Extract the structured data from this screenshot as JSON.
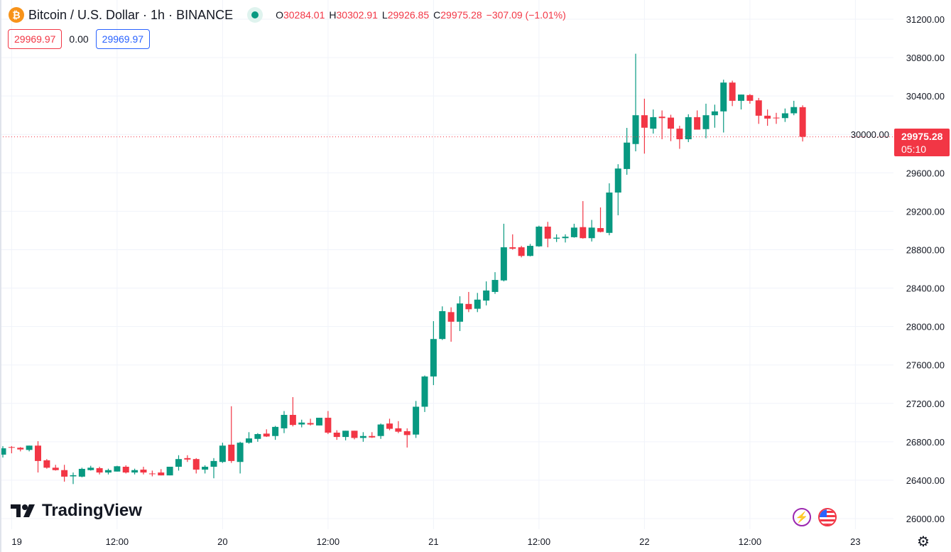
{
  "legend": {
    "symbol_title": "Bitcoin / U.S. Dollar · 1h · BINANCE",
    "coin_icon": "bitcoin-icon",
    "o_label": "O",
    "o_value": "30284.01",
    "h_label": "H",
    "h_value": "30302.91",
    "l_label": "L",
    "l_value": "29926.85",
    "c_label": "C",
    "c_value": "29975.28",
    "change": "−307.09 (−1.01%)",
    "sell_price": "29969.97",
    "spread": "0.00",
    "buy_price": "29969.97"
  },
  "last_price": {
    "value": "29975.28",
    "countdown": "05:10"
  },
  "branding": {
    "logo_text": "TradingView"
  },
  "colors": {
    "up": "#089981",
    "down": "#F23645",
    "grid": "#f0f3fa",
    "sell": "#F23645",
    "buy": "#2962FF"
  },
  "chart_data": {
    "type": "candlestick",
    "title": "Bitcoin / U.S. Dollar · 1h · BINANCE",
    "interval": "1h",
    "ylim": [
      26000,
      31200
    ],
    "y_ticks": [
      "31200.00",
      "30800.00",
      "30400.00",
      "30000.00",
      "29600.00",
      "29200.00",
      "28800.00",
      "28400.00",
      "28000.00",
      "27600.00",
      "27200.00",
      "26800.00",
      "26400.00",
      "26000.00"
    ],
    "x_ticks": [
      {
        "label": "19",
        "hour": 1
      },
      {
        "label": "12:00",
        "hour": 13
      },
      {
        "label": "20",
        "hour": 25
      },
      {
        "label": "12:00",
        "hour": 37
      },
      {
        "label": "21",
        "hour": 49
      },
      {
        "label": "12:00",
        "hour": 61
      },
      {
        "label": "22",
        "hour": 73
      },
      {
        "label": "12:00",
        "hour": 85
      },
      {
        "label": "23",
        "hour": 97
      }
    ],
    "grid": true,
    "ohlc": [
      [
        26666,
        26754,
        26636,
        26732
      ],
      [
        26745,
        26755,
        26680,
        26738
      ],
      [
        26738,
        26745,
        26700,
        26720
      ],
      [
        26715,
        26760,
        26700,
        26760
      ],
      [
        26760,
        26806,
        26480,
        26600
      ],
      [
        26607,
        26620,
        26520,
        26530
      ],
      [
        26530,
        26560,
        26500,
        26505
      ],
      [
        26505,
        26560,
        26385,
        26437
      ],
      [
        26440,
        26480,
        26360,
        26452
      ],
      [
        26437,
        26530,
        26430,
        26518
      ],
      [
        26505,
        26550,
        26500,
        26530
      ],
      [
        26525,
        26540,
        26460,
        26480
      ],
      [
        26480,
        26520,
        26460,
        26505
      ],
      [
        26490,
        26550,
        26490,
        26545
      ],
      [
        26540,
        26555,
        26470,
        26480
      ],
      [
        26480,
        26520,
        26460,
        26505
      ],
      [
        26510,
        26540,
        26460,
        26480
      ],
      [
        26470,
        26500,
        26440,
        26468
      ],
      [
        26480,
        26515,
        26450,
        26450
      ],
      [
        26450,
        26540,
        26450,
        26540
      ],
      [
        26540,
        26660,
        26500,
        26620
      ],
      [
        26630,
        26660,
        26590,
        26615
      ],
      [
        26620,
        26630,
        26470,
        26510
      ],
      [
        26510,
        26555,
        26470,
        26540
      ],
      [
        26540,
        26630,
        26420,
        26600
      ],
      [
        26590,
        26790,
        26580,
        26760
      ],
      [
        26770,
        27170,
        26580,
        26600
      ],
      [
        26590,
        26800,
        26470,
        26790
      ],
      [
        26790,
        26900,
        26780,
        26835
      ],
      [
        26830,
        26890,
        26800,
        26880
      ],
      [
        26885,
        26930,
        26850,
        26855
      ],
      [
        26860,
        26965,
        26820,
        26955
      ],
      [
        26940,
        27120,
        26890,
        27080
      ],
      [
        27080,
        27265,
        26960,
        26975
      ],
      [
        26980,
        27030,
        26950,
        27000
      ],
      [
        26995,
        27040,
        26970,
        26980
      ],
      [
        26970,
        27050,
        26970,
        27050
      ],
      [
        27050,
        27120,
        26880,
        26895
      ],
      [
        26895,
        26920,
        26820,
        26850
      ],
      [
        26850,
        26915,
        26815,
        26915
      ],
      [
        26915,
        26915,
        26825,
        26840
      ],
      [
        26840,
        26900,
        26800,
        26860
      ],
      [
        26860,
        26900,
        26840,
        26845
      ],
      [
        26860,
        26990,
        26830,
        26980
      ],
      [
        26990,
        27040,
        26920,
        26935
      ],
      [
        26940,
        27015,
        26890,
        26905
      ],
      [
        26910,
        26940,
        26740,
        26870
      ],
      [
        26875,
        27225,
        26840,
        27165
      ],
      [
        27165,
        27490,
        27110,
        27480
      ],
      [
        27480,
        28056,
        27390,
        27870
      ],
      [
        27870,
        28210,
        27860,
        28160
      ],
      [
        28150,
        28200,
        27842,
        28050
      ],
      [
        28050,
        28315,
        27953,
        28240
      ],
      [
        28235,
        28360,
        28150,
        28180
      ],
      [
        28185,
        28350,
        28150,
        28280
      ],
      [
        28270,
        28470,
        28220,
        28375
      ],
      [
        28360,
        28566,
        28340,
        28485
      ],
      [
        28480,
        29070,
        28470,
        28825
      ],
      [
        28825,
        28960,
        28800,
        28810
      ],
      [
        28825,
        28840,
        28720,
        28735
      ],
      [
        28735,
        28860,
        28730,
        28840
      ],
      [
        28835,
        29050,
        28830,
        29040
      ],
      [
        29040,
        29090,
        28825,
        28915
      ],
      [
        28915,
        28960,
        28880,
        28925
      ],
      [
        28920,
        28960,
        28875,
        28935
      ],
      [
        28930,
        29070,
        28925,
        29030
      ],
      [
        29035,
        29306,
        28915,
        28920
      ],
      [
        28920,
        29110,
        28885,
        29030
      ],
      [
        29025,
        29240,
        28980,
        28985
      ],
      [
        28975,
        29491,
        28950,
        29395
      ],
      [
        29395,
        29690,
        29158,
        29645
      ],
      [
        29640,
        30068,
        29580,
        29915
      ],
      [
        29900,
        30840,
        29824,
        30200
      ],
      [
        30200,
        30372,
        29800,
        30070
      ],
      [
        30060,
        30260,
        30009,
        30180
      ],
      [
        30185,
        30250,
        29950,
        30170
      ],
      [
        30175,
        30205,
        29930,
        30060
      ],
      [
        30060,
        30090,
        29850,
        29950
      ],
      [
        29950,
        30210,
        29920,
        30180
      ],
      [
        30180,
        30250,
        30050,
        30050
      ],
      [
        30055,
        30320,
        29960,
        30200
      ],
      [
        30200,
        30310,
        30070,
        30240
      ],
      [
        30240,
        30570,
        30020,
        30540
      ],
      [
        30540,
        30560,
        30295,
        30350
      ],
      [
        30350,
        30415,
        30260,
        30415
      ],
      [
        30410,
        30420,
        30320,
        30350
      ],
      [
        30355,
        30380,
        30110,
        30195
      ],
      [
        30195,
        30260,
        30090,
        30165
      ],
      [
        30175,
        30225,
        30110,
        30170
      ],
      [
        30170,
        30270,
        30130,
        30220
      ],
      [
        30220,
        30350,
        30200,
        30285
      ],
      [
        30284.01,
        30302.91,
        29926.85,
        29975.28
      ]
    ]
  }
}
